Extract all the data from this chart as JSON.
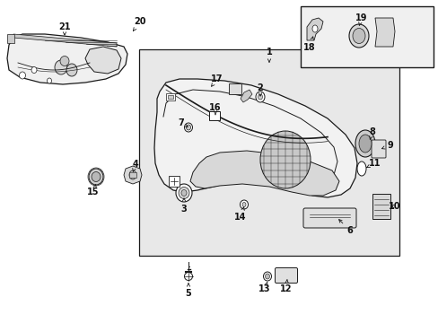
{
  "bg_color": "#ffffff",
  "lc": "#1a1a1a",
  "tc": "#111111",
  "sfs": 7.0,
  "panel_bg": "#ececec",
  "door_bg": "#f4f4f4",
  "inset_bg": "#f0f0f0",
  "upper_left_bg": "#f0f0f0"
}
